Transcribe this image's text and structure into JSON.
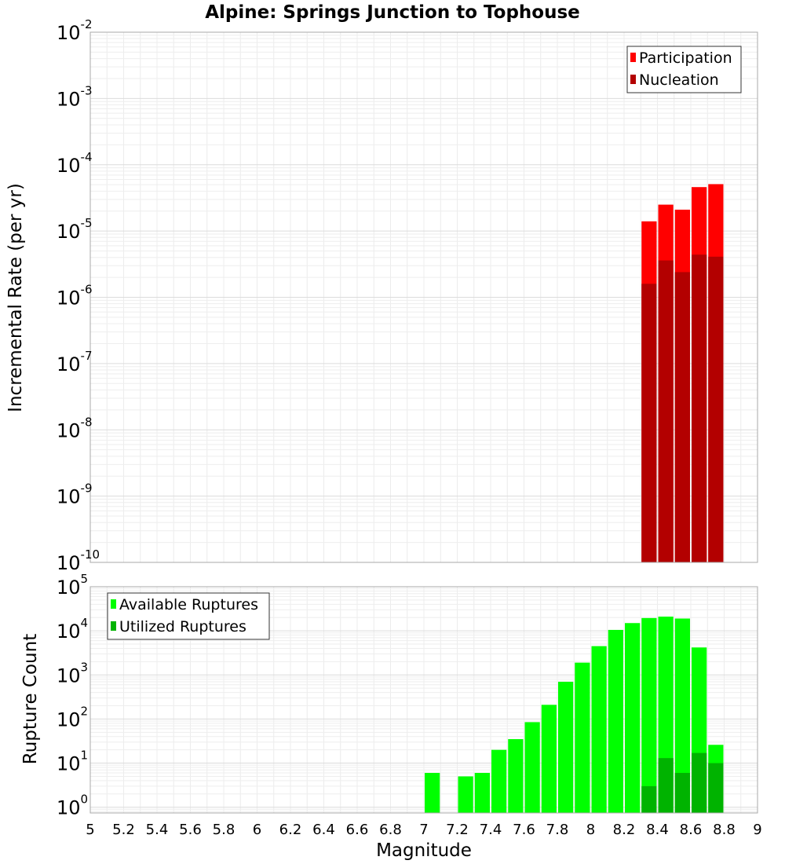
{
  "chart_data": {
    "title": "Alpine: Springs Junction to Tophouse",
    "xlabel": "Magnitude",
    "x_ticks": [
      "5",
      "5.2",
      "5.4",
      "5.6",
      "5.8",
      "6",
      "6.2",
      "6.4",
      "6.6",
      "6.8",
      "7",
      "7.2",
      "7.4",
      "7.6",
      "7.8",
      "8",
      "8.2",
      "8.4",
      "8.6",
      "8.8",
      "9"
    ],
    "xlim": [
      5,
      9
    ],
    "bar_width": 0.1,
    "grid": true,
    "panels": [
      {
        "type": "bar",
        "ylabel": "Incremental Rate (per yr)",
        "yscale": "log",
        "ylim_exp": [
          -10,
          -2
        ],
        "y_tick_exponents": [
          "-2",
          "-3",
          "-4",
          "-5",
          "-6",
          "-7",
          "-8",
          "-9",
          "-10"
        ],
        "y_tick_base": "10",
        "legend_position": "top-right",
        "series": [
          {
            "name": "Participation",
            "color": "#ff0000",
            "x": [
              8.35,
              8.45,
              8.55,
              8.65,
              8.75
            ],
            "values": [
              1.4e-05,
              2.5e-05,
              2.1e-05,
              4.6e-05,
              5.1e-05
            ]
          },
          {
            "name": "Nucleation",
            "color": "#b30000",
            "x": [
              8.35,
              8.45,
              8.55,
              8.65,
              8.75
            ],
            "values": [
              1.6e-06,
              3.6e-06,
              2.4e-06,
              4.4e-06,
              4.1e-06
            ]
          }
        ]
      },
      {
        "type": "bar",
        "ylabel": "Rupture Count",
        "yscale": "log",
        "ylim_exp": [
          -0.13,
          5
        ],
        "y_tick_exponents": [
          "5",
          "4",
          "3",
          "2",
          "1",
          "0"
        ],
        "y_tick_values": [
          5,
          4,
          3,
          2,
          1,
          0
        ],
        "y_tick_base": "10",
        "legend_position": "top-left",
        "series": [
          {
            "name": "Available Ruptures",
            "color": "#00ff00",
            "x": [
              7.05,
              7.25,
              7.35,
              7.45,
              7.55,
              7.65,
              7.75,
              7.85,
              7.95,
              8.05,
              8.15,
              8.25,
              8.35,
              8.45,
              8.55,
              8.65,
              8.75
            ],
            "values": [
              6,
              5,
              6,
              20,
              35,
              85,
              210,
              700,
              1900,
              4500,
              10500,
              15000,
              19500,
              21000,
              19000,
              4200,
              26
            ]
          },
          {
            "name": "Utilized Ruptures",
            "color": "#00b300",
            "x": [
              8.35,
              8.45,
              8.55,
              8.65,
              8.75
            ],
            "values": [
              3,
              13,
              6,
              17,
              10
            ]
          }
        ]
      }
    ]
  }
}
